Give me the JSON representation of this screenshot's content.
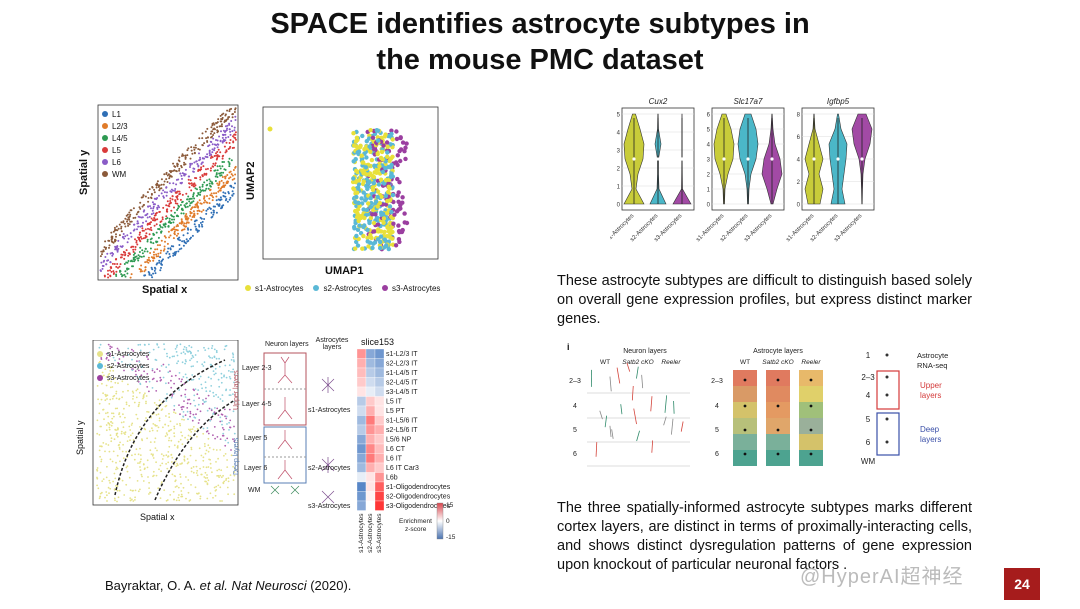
{
  "title_line1": "SPACE identifies astrocyte subtypes in",
  "title_line2": "the mouse PMC dataset",
  "spatial_plot": {
    "xlabel": "Spatial x",
    "ylabel": "Spatial y",
    "legend": [
      {
        "label": "L1",
        "color": "#2f6fb5"
      },
      {
        "label": "L2/3",
        "color": "#e07b2a"
      },
      {
        "label": "L4/5",
        "color": "#2e9a52"
      },
      {
        "label": "L5",
        "color": "#d93a3a"
      },
      {
        "label": "L6",
        "color": "#8a5cc7"
      },
      {
        "label": "WM",
        "color": "#8b5a3a"
      }
    ]
  },
  "umap_plot": {
    "xlabel": "UMAP1",
    "ylabel": "UMAP2",
    "legend": [
      {
        "label": "s1-Astrocytes",
        "color": "#e8e03a"
      },
      {
        "label": "s2-Astrocytes",
        "color": "#5ab8d6"
      },
      {
        "label": "s3-Astrocytes",
        "color": "#9b3fa0"
      }
    ]
  },
  "violin_plot": {
    "genes": [
      "Cux2",
      "Slc17a7",
      "Igfbp5"
    ],
    "xticks": [
      "s1-Astrocytes",
      "s2-Astrocytes",
      "s3-Astrocytes"
    ],
    "yticks": [
      [
        "0",
        "1",
        "2",
        "3",
        "4",
        "5"
      ],
      [
        "0",
        "1",
        "2",
        "3",
        "4",
        "5",
        "6"
      ],
      [
        "0",
        "2",
        "4",
        "6",
        "8"
      ]
    ]
  },
  "paragraph1": "These astrocyte subtypes are difficult to distinguish based solely on overall gene expression profiles, but express distinct marker genes.",
  "bottom_spatial": {
    "xlabel": "Spatial x",
    "ylabel": "Spatial y",
    "legend": [
      "s1-Astrocytes",
      "s2-Astrocytes",
      "s3-Astrocytes"
    ]
  },
  "layers_diagram": {
    "header_neuron": "Neuron layers",
    "header_astro": "Astrocytes layers",
    "upper": "Upper layers",
    "deep": "Deep layers",
    "rows": [
      "Layer 2-3",
      "Layer 4-5",
      "Layer 5",
      "Layer 6",
      "WM"
    ],
    "astro_labels": [
      "s1-Astrocytes",
      "s2-Astrocytes",
      "s3-Astrocytes"
    ]
  },
  "heatmap": {
    "title": "slice153",
    "rows": [
      "s1-L2/3 IT",
      "s2-L2/3 IT",
      "s1-L4/5 IT",
      "s2-L4/5 IT",
      "s3-L4/5 IT",
      "L5 IT",
      "L5 PT",
      "s1-L5/6 IT",
      "s2-L5/6 IT",
      "L5/6 NP",
      "L6 CT",
      "L6 IT",
      "L6 IT Car3",
      "L6b",
      "s1-Oligodendrocytes",
      "s2-Oligodendrocytes",
      "s3-Oligodendrocytes"
    ],
    "cols": [
      "s1-Astrocytes",
      "s2-Astrocytes",
      "s3-Astrocytes"
    ],
    "legend_title": "Enrichment z-score",
    "legend_ticks": [
      "15",
      "0",
      "-15"
    ]
  },
  "layer_panel_i": {
    "panel_label": "i",
    "neuron_header": "Neuron layers",
    "astro_header": "Astrocyte layers",
    "cols": [
      "WT",
      "Satb2 cKO",
      "Reeler"
    ],
    "astro_cols": [
      "WT",
      "Satb2 cKO",
      "Reeler"
    ],
    "rows": [
      "2–3",
      "4",
      "5",
      "6"
    ],
    "rnaseq_title": "Astrocyte RNA-seq",
    "rnaseq_rows": [
      "1",
      "2–3",
      "4",
      "5",
      "6",
      "WM"
    ],
    "upper_label": "Upper layers",
    "deep_label": "Deep layers"
  },
  "paragraph2": "The three spatially-informed astrocyte subtypes marks different cortex layers, are distinct in terms of proximally-interacting cells, and shows distinct dysregulation patterns of gene expression upon knockout of particular neuronal factors .",
  "citation": {
    "authors": "Bayraktar, O. A. ",
    "etal": "et al.",
    "journal": " Nat Neurosci",
    "year": " (2020)."
  },
  "watermark": "@HyperAI超神经",
  "page_number": "24"
}
